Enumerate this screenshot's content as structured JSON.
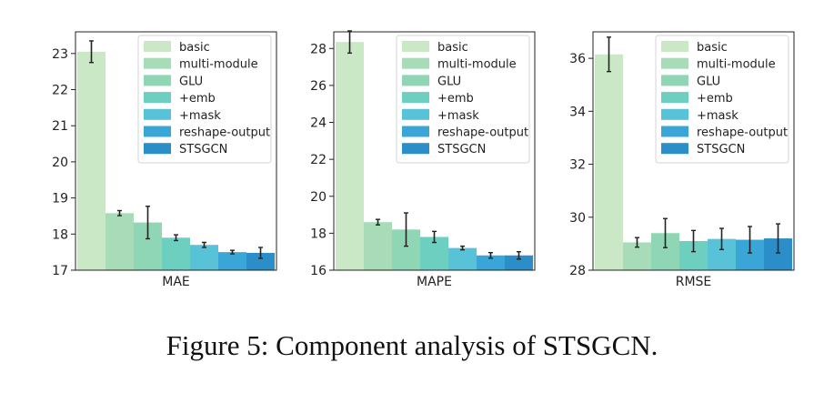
{
  "caption": "Figure 5: Component analysis of STSGCN.",
  "legend_labels": [
    "basic",
    "multi-module",
    "GLU",
    "+emb",
    "+mask",
    "reshape-output",
    "STSGCN"
  ],
  "colors": [
    "#cbe8c6",
    "#a8dcb8",
    "#8ed6b4",
    "#6ccfc0",
    "#58c3d8",
    "#3aa6d8",
    "#2b8ec9"
  ],
  "chart_data": [
    {
      "type": "bar",
      "title": "",
      "xlabel": "MAE",
      "ylabel": "",
      "categories": [
        "basic",
        "multi-module",
        "GLU",
        "+emb",
        "+mask",
        "reshape-output",
        "STSGCN"
      ],
      "values": [
        23.05,
        18.58,
        18.32,
        17.9,
        17.7,
        17.5,
        17.48
      ],
      "errors": [
        0.3,
        0.07,
        0.45,
        0.08,
        0.07,
        0.05,
        0.15
      ],
      "ylim": [
        17,
        23.6
      ],
      "yticks": [
        17,
        18,
        19,
        20,
        21,
        22,
        23
      ],
      "legend_position": "top-right"
    },
    {
      "type": "bar",
      "title": "",
      "xlabel": "MAPE",
      "ylabel": "",
      "categories": [
        "basic",
        "multi-module",
        "GLU",
        "+emb",
        "+mask",
        "reshape-output",
        "STSGCN"
      ],
      "values": [
        28.35,
        18.6,
        18.2,
        17.8,
        17.2,
        16.8,
        16.8
      ],
      "errors": [
        0.6,
        0.15,
        0.9,
        0.3,
        0.1,
        0.15,
        0.2
      ],
      "ylim": [
        16,
        28.9
      ],
      "yticks": [
        16,
        18,
        20,
        22,
        24,
        26,
        28
      ],
      "legend_position": "top-right"
    },
    {
      "type": "bar",
      "title": "",
      "xlabel": "RMSE",
      "ylabel": "",
      "categories": [
        "basic",
        "multi-module",
        "GLU",
        "+emb",
        "+mask",
        "reshape-output",
        "STSGCN"
      ],
      "values": [
        36.15,
        29.05,
        29.4,
        29.1,
        29.18,
        29.15,
        29.2
      ],
      "errors": [
        0.65,
        0.18,
        0.55,
        0.4,
        0.4,
        0.5,
        0.55
      ],
      "ylim": [
        28,
        37.0
      ],
      "yticks": [
        28,
        30,
        32,
        34,
        36
      ],
      "legend_position": "top-right"
    }
  ]
}
